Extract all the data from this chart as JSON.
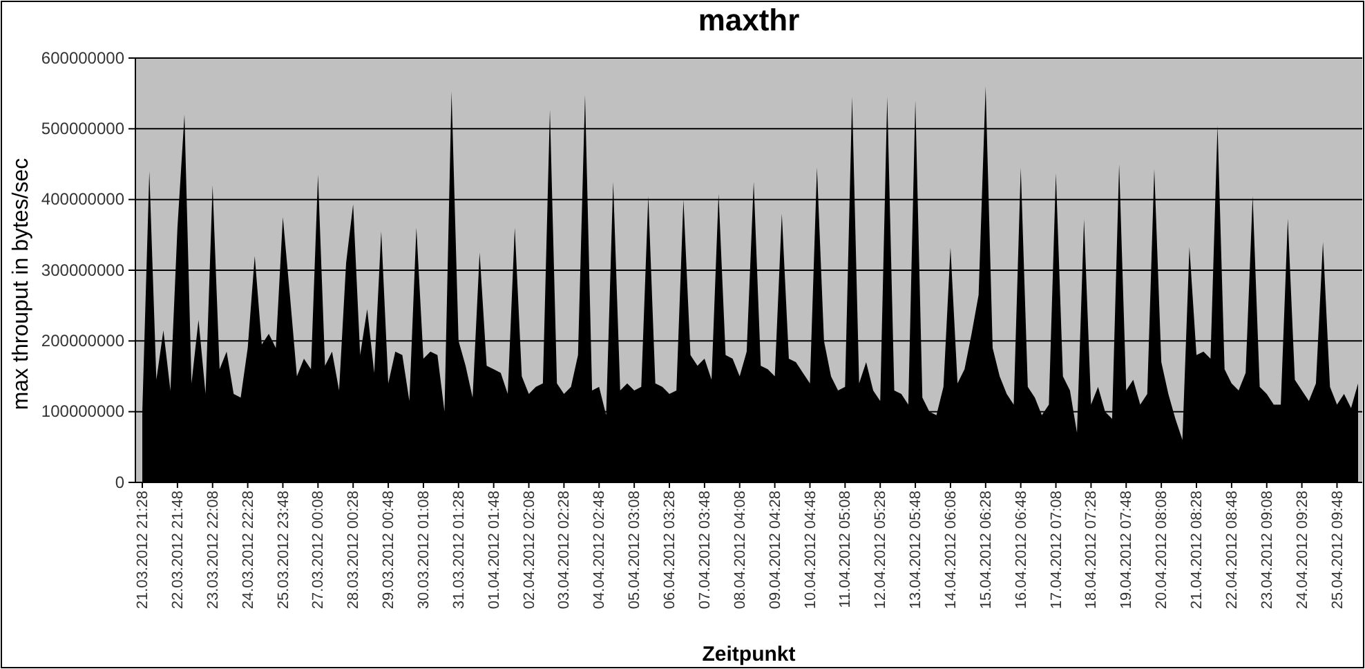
{
  "chart_data": {
    "type": "area",
    "title": "maxthr",
    "xlabel": "Zeitpunkt",
    "ylabel": "max throuput  in bytes/sec",
    "categories": [
      "21.03.2012 21:28",
      null,
      null,
      null,
      null,
      "22.03.2012 21:48",
      null,
      null,
      null,
      null,
      "23.03.2012 22:08",
      null,
      null,
      null,
      null,
      "24.03.2012 22:28",
      null,
      null,
      null,
      null,
      "25.03.2012 23:48",
      null,
      null,
      null,
      null,
      "27.03.2012 00:08",
      null,
      null,
      null,
      null,
      "28.03.2012 00:28",
      null,
      null,
      null,
      null,
      "29.03.2012 00:48",
      null,
      null,
      null,
      null,
      "30.03.2012 01:08",
      null,
      null,
      null,
      null,
      "31.03.2012 01:28",
      null,
      null,
      null,
      null,
      "01.04.2012 01:48",
      null,
      null,
      null,
      null,
      "02.04.2012 02:08",
      null,
      null,
      null,
      null,
      "03.04.2012 02:28",
      null,
      null,
      null,
      null,
      "04.04.2012 02:48",
      null,
      null,
      null,
      null,
      "05.04.2012 03:08",
      null,
      null,
      null,
      null,
      "06.04.2012 03:28",
      null,
      null,
      null,
      null,
      "07.04.2012 03:48",
      null,
      null,
      null,
      null,
      "08.04.2012 04:08",
      null,
      null,
      null,
      null,
      "09.04.2012 04:28",
      null,
      null,
      null,
      null,
      "10.04.2012 04:48",
      null,
      null,
      null,
      null,
      "11.04.2012 05:08",
      null,
      null,
      null,
      null,
      "12.04.2012 05:28",
      null,
      null,
      null,
      null,
      "13.04.2012 05:48",
      null,
      null,
      null,
      null,
      "14.04.2012 06:08",
      null,
      null,
      null,
      null,
      "15.04.2012 06:28",
      null,
      null,
      null,
      null,
      "16.04.2012 06:48",
      null,
      null,
      null,
      null,
      "17.04.2012 07:08",
      null,
      null,
      null,
      null,
      "18.04.2012 07:28",
      null,
      null,
      null,
      null,
      "19.04.2012 07:48",
      null,
      null,
      null,
      null,
      "20.04.2012 08:08",
      null,
      null,
      null,
      null,
      "21.04.2012 08:28",
      null,
      null,
      null,
      null,
      "22.04.2012 08:48",
      null,
      null,
      null,
      null,
      "23.04.2012 09:08",
      null,
      null,
      null,
      null,
      "24.04.2012 09:28",
      null,
      null,
      null,
      null,
      "25.04.2012 09:48",
      null,
      null,
      null
    ],
    "series": [
      {
        "color": "#000000",
        "values": [
          100000000,
          440000000,
          145000000,
          215000000,
          130000000,
          360000000,
          520000000,
          140000000,
          230000000,
          125000000,
          420000000,
          160000000,
          185000000,
          125000000,
          120000000,
          190000000,
          320000000,
          195000000,
          210000000,
          190000000,
          375000000,
          265000000,
          150000000,
          175000000,
          160000000,
          435000000,
          165000000,
          185000000,
          130000000,
          310000000,
          393000000,
          180000000,
          245000000,
          155000000,
          355000000,
          140000000,
          185000000,
          180000000,
          115000000,
          360000000,
          175000000,
          185000000,
          180000000,
          100000000,
          553000000,
          200000000,
          165000000,
          120000000,
          325000000,
          165000000,
          160000000,
          155000000,
          125000000,
          360000000,
          150000000,
          125000000,
          135000000,
          140000000,
          527000000,
          140000000,
          125000000,
          135000000,
          180000000,
          548000000,
          130000000,
          135000000,
          95000000,
          425000000,
          130000000,
          140000000,
          130000000,
          135000000,
          405000000,
          140000000,
          135000000,
          125000000,
          130000000,
          400000000,
          180000000,
          165000000,
          175000000,
          145000000,
          408000000,
          180000000,
          175000000,
          150000000,
          185000000,
          425000000,
          165000000,
          160000000,
          150000000,
          380000000,
          175000000,
          170000000,
          155000000,
          140000000,
          445000000,
          200000000,
          150000000,
          130000000,
          135000000,
          545000000,
          140000000,
          170000000,
          130000000,
          115000000,
          545000000,
          130000000,
          125000000,
          110000000,
          540000000,
          120000000,
          100000000,
          95000000,
          135000000,
          332000000,
          140000000,
          160000000,
          210000000,
          265000000,
          560000000,
          190000000,
          150000000,
          125000000,
          110000000,
          445000000,
          135000000,
          120000000,
          95000000,
          110000000,
          437000000,
          150000000,
          130000000,
          70000000,
          372000000,
          110000000,
          135000000,
          100000000,
          90000000,
          450000000,
          130000000,
          145000000,
          110000000,
          125000000,
          443000000,
          170000000,
          125000000,
          90000000,
          60000000,
          333000000,
          180000000,
          185000000,
          175000000,
          505000000,
          160000000,
          140000000,
          130000000,
          155000000,
          405000000,
          135000000,
          125000000,
          110000000,
          110000000,
          373000000,
          145000000,
          130000000,
          115000000,
          140000000,
          340000000,
          135000000,
          110000000,
          125000000,
          105000000,
          140000000
        ]
      }
    ],
    "ylim": [
      0,
      600000000
    ],
    "yticks": [
      0,
      100000000,
      200000000,
      300000000,
      400000000,
      500000000,
      600000000
    ],
    "grid": "y"
  }
}
